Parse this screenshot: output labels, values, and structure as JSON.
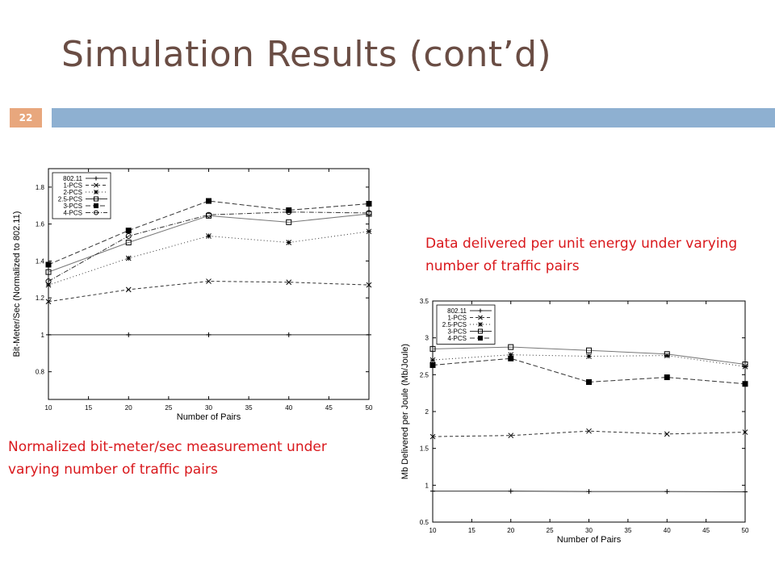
{
  "slide": {
    "title": "Simulation Results (cont’d)",
    "number": "22",
    "caption_left": "Normalized bit-meter/sec measurement under varying number of traffic pairs",
    "caption_right": "Data delivered per unit energy under varying number of traffic pairs",
    "colors": {
      "title": "#6a4d44",
      "bar": "#8eb0d1",
      "badge": "#e8a77d",
      "caption": "#d9181c"
    }
  },
  "chart_data": [
    {
      "type": "line",
      "xlabel": "Number of Pairs",
      "ylabel": "Bit-Meter/Sec (Normalized to 802.11)",
      "xlim": [
        10,
        50
      ],
      "ylim": [
        0.65,
        1.9
      ],
      "xticks": [
        10,
        15,
        20,
        25,
        30,
        35,
        40,
        45,
        50
      ],
      "yticks": [
        0.8,
        1,
        1.2,
        1.4,
        1.6,
        1.8
      ],
      "legend_position": "top-left",
      "x": [
        10,
        20,
        30,
        40,
        50
      ],
      "series": [
        {
          "name": "802.11",
          "values": [
            1,
            1,
            1,
            1,
            1
          ],
          "marker": "plus",
          "dash": ""
        },
        {
          "name": "1-PCS",
          "values": [
            1.18,
            1.245,
            1.29,
            1.285,
            1.27
          ],
          "marker": "x",
          "dash": "4 3"
        },
        {
          "name": "2-PCS",
          "values": [
            1.27,
            1.415,
            1.535,
            1.5,
            1.56
          ],
          "marker": "star",
          "dash": "1 3"
        },
        {
          "name": "2.5-PCS",
          "values": [
            1.34,
            1.5,
            1.645,
            1.61,
            1.655
          ],
          "marker": "square-open",
          "dash": ""
        },
        {
          "name": "3-PCS",
          "values": [
            1.38,
            1.565,
            1.725,
            1.675,
            1.71
          ],
          "marker": "square-filled",
          "dash": "6 3"
        },
        {
          "name": "4-PCS",
          "values": [
            1.29,
            1.535,
            1.65,
            1.665,
            1.66
          ],
          "marker": "circle-open",
          "dash": "6 2 1 2"
        }
      ]
    },
    {
      "type": "line",
      "xlabel": "Number of Pairs",
      "ylabel": "Mb Delivered per Joule (Mb/Joule)",
      "xlim": [
        10,
        50
      ],
      "ylim": [
        0.5,
        3.5
      ],
      "xticks": [
        10,
        15,
        20,
        25,
        30,
        35,
        40,
        45,
        50
      ],
      "yticks": [
        0.5,
        1,
        1.5,
        2,
        2.5,
        3,
        3.5
      ],
      "legend_position": "top-left",
      "x": [
        10,
        20,
        30,
        40,
        50
      ],
      "series": [
        {
          "name": "802.11",
          "values": [
            0.92,
            0.92,
            0.915,
            0.915,
            0.91
          ],
          "marker": "plus",
          "dash": ""
        },
        {
          "name": "1-PCS",
          "values": [
            1.66,
            1.675,
            1.735,
            1.695,
            1.72
          ],
          "marker": "x",
          "dash": "4 3"
        },
        {
          "name": "2.5-PCS",
          "values": [
            2.7,
            2.77,
            2.75,
            2.76,
            2.61
          ],
          "marker": "star",
          "dash": "1 3"
        },
        {
          "name": "3-PCS",
          "values": [
            2.85,
            2.875,
            2.83,
            2.78,
            2.64
          ],
          "marker": "square-open",
          "dash": ""
        },
        {
          "name": "4-PCS",
          "values": [
            2.63,
            2.72,
            2.4,
            2.465,
            2.375
          ],
          "marker": "square-filled",
          "dash": "6 3"
        }
      ]
    }
  ]
}
